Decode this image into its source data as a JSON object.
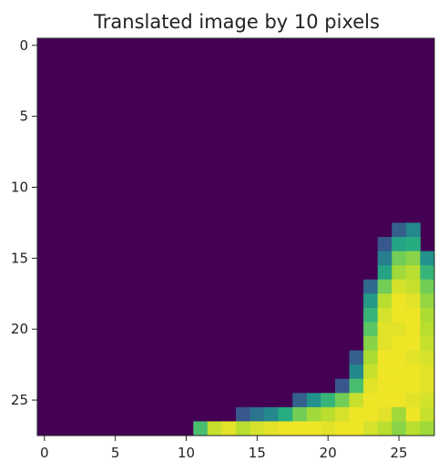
{
  "chart_data": {
    "type": "heatmap",
    "title": "Translated image by 10 pixels",
    "xlabel": "",
    "ylabel": "",
    "xlim": [
      -0.5,
      27.5
    ],
    "ylim": [
      27.5,
      -0.5
    ],
    "x_ticks": [
      0,
      5,
      10,
      15,
      20,
      25
    ],
    "x_tick_labels": [
      "0",
      "5",
      "10",
      "15",
      "20",
      "25"
    ],
    "y_ticks": [
      0,
      5,
      10,
      15,
      20,
      25
    ],
    "y_tick_labels": [
      "0",
      "5",
      "10",
      "15",
      "20",
      "25"
    ],
    "grid": false,
    "colormap": "viridis",
    "value_range": [
      0,
      255
    ],
    "grid_shape": [
      28,
      28
    ],
    "background_value": 0,
    "pixels": [
      [
        13,
        25,
        80
      ],
      [
        13,
        26,
        120
      ],
      [
        14,
        24,
        70
      ],
      [
        14,
        25,
        150
      ],
      [
        14,
        26,
        160
      ],
      [
        15,
        24,
        110
      ],
      [
        15,
        25,
        200
      ],
      [
        15,
        26,
        210
      ],
      [
        15,
        27,
        130
      ],
      [
        16,
        24,
        150
      ],
      [
        16,
        25,
        220
      ],
      [
        16,
        26,
        230
      ],
      [
        16,
        27,
        170
      ],
      [
        17,
        23,
        90
      ],
      [
        17,
        24,
        200
      ],
      [
        17,
        25,
        240
      ],
      [
        17,
        26,
        235
      ],
      [
        17,
        27,
        200
      ],
      [
        18,
        23,
        140
      ],
      [
        18,
        24,
        230
      ],
      [
        18,
        25,
        250
      ],
      [
        18,
        26,
        245
      ],
      [
        18,
        27,
        215
      ],
      [
        19,
        23,
        170
      ],
      [
        19,
        24,
        240
      ],
      [
        19,
        25,
        250
      ],
      [
        19,
        26,
        250
      ],
      [
        19,
        27,
        225
      ],
      [
        20,
        23,
        190
      ],
      [
        20,
        24,
        245
      ],
      [
        20,
        25,
        245
      ],
      [
        20,
        26,
        250
      ],
      [
        20,
        27,
        230
      ],
      [
        21,
        23,
        210
      ],
      [
        21,
        24,
        245
      ],
      [
        21,
        25,
        250
      ],
      [
        21,
        26,
        250
      ],
      [
        21,
        27,
        235
      ],
      [
        22,
        22,
        80
      ],
      [
        22,
        23,
        225
      ],
      [
        22,
        24,
        250
      ],
      [
        22,
        25,
        250
      ],
      [
        22,
        26,
        245
      ],
      [
        22,
        27,
        240
      ],
      [
        23,
        22,
        120
      ],
      [
        23,
        23,
        235
      ],
      [
        23,
        24,
        250
      ],
      [
        23,
        25,
        250
      ],
      [
        23,
        26,
        250
      ],
      [
        23,
        27,
        245
      ],
      [
        24,
        21,
        70
      ],
      [
        24,
        22,
        180
      ],
      [
        24,
        23,
        245
      ],
      [
        24,
        24,
        250
      ],
      [
        24,
        25,
        250
      ],
      [
        24,
        26,
        250
      ],
      [
        24,
        27,
        245
      ],
      [
        25,
        18,
        80
      ],
      [
        25,
        19,
        130
      ],
      [
        25,
        20,
        170
      ],
      [
        25,
        21,
        200
      ],
      [
        25,
        22,
        235
      ],
      [
        25,
        23,
        250
      ],
      [
        25,
        24,
        250
      ],
      [
        25,
        25,
        250
      ],
      [
        25,
        26,
        245
      ],
      [
        25,
        27,
        240
      ],
      [
        26,
        14,
        70
      ],
      [
        26,
        15,
        100
      ],
      [
        26,
        16,
        120
      ],
      [
        26,
        17,
        160
      ],
      [
        26,
        18,
        200
      ],
      [
        26,
        19,
        220
      ],
      [
        26,
        20,
        230
      ],
      [
        26,
        21,
        240
      ],
      [
        26,
        22,
        250
      ],
      [
        26,
        23,
        250
      ],
      [
        26,
        24,
        245
      ],
      [
        26,
        25,
        220
      ],
      [
        26,
        26,
        250
      ],
      [
        26,
        27,
        235
      ],
      [
        27,
        11,
        180
      ],
      [
        27,
        12,
        235
      ],
      [
        27,
        13,
        245
      ],
      [
        27,
        14,
        230
      ],
      [
        27,
        15,
        240
      ],
      [
        27,
        16,
        245
      ],
      [
        27,
        17,
        250
      ],
      [
        27,
        18,
        250
      ],
      [
        27,
        19,
        250
      ],
      [
        27,
        20,
        245
      ],
      [
        27,
        21,
        250
      ],
      [
        27,
        22,
        250
      ],
      [
        27,
        23,
        240
      ],
      [
        27,
        24,
        230
      ],
      [
        27,
        25,
        210
      ],
      [
        27,
        26,
        230
      ],
      [
        27,
        27,
        220
      ]
    ]
  }
}
